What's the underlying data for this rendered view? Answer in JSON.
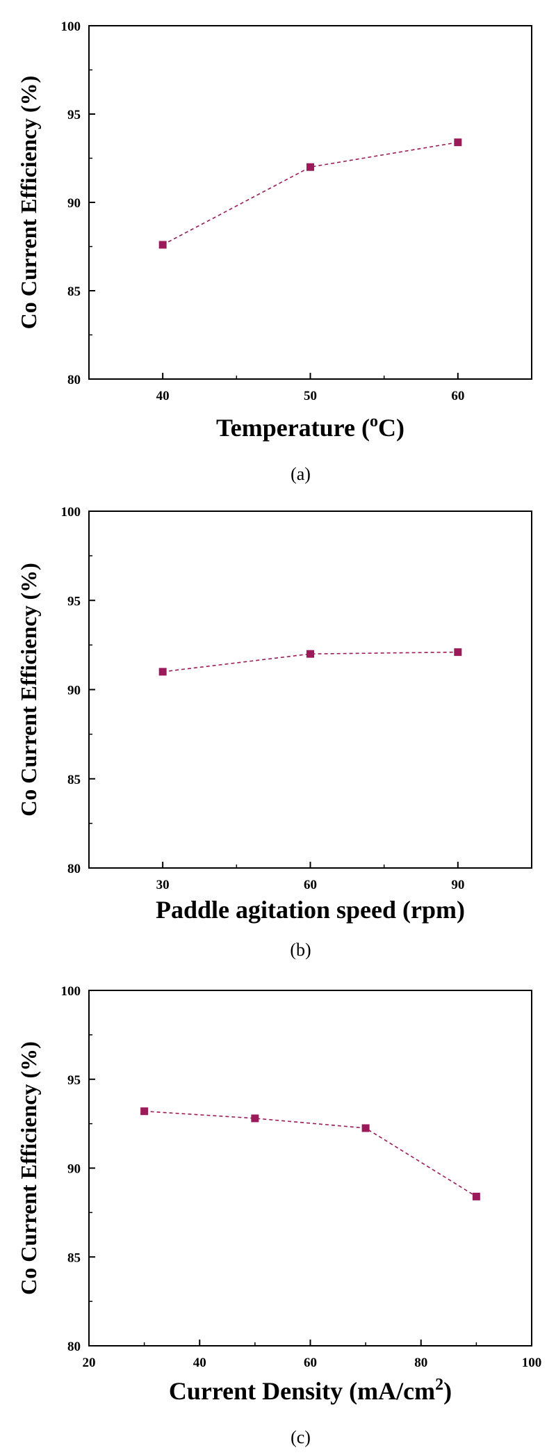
{
  "colors": {
    "series": "#9b1b5a",
    "axes": "#000000"
  },
  "chart_data": [
    {
      "type": "line",
      "line_style": "dashed",
      "marker": "square",
      "caption": "(a)",
      "xlabel": "Temperature (",
      "xlabel_superscript": "o",
      "xlabel_suffix": "C)",
      "ylabel": "Co Current Efficiency (%)",
      "xlim": [
        35,
        65
      ],
      "ylim": [
        80,
        100
      ],
      "x_ticks": [
        40,
        50,
        60
      ],
      "y_ticks": [
        80,
        85,
        90,
        95,
        100
      ],
      "series": [
        {
          "x": [
            40,
            50,
            60
          ],
          "y": [
            87.6,
            92.0,
            93.4
          ]
        }
      ]
    },
    {
      "type": "line",
      "line_style": "dashed",
      "marker": "square",
      "caption": "(b)",
      "xlabel": "Paddle agitation speed (rpm)",
      "ylabel": "Co Current Efficiency (%)",
      "xlim": [
        15,
        105
      ],
      "ylim": [
        80,
        100
      ],
      "x_ticks": [
        30,
        60,
        90
      ],
      "y_ticks": [
        80,
        85,
        90,
        95,
        100
      ],
      "series": [
        {
          "x": [
            30,
            60,
            90
          ],
          "y": [
            91.0,
            92.0,
            92.1
          ]
        }
      ]
    },
    {
      "type": "line",
      "line_style": "dashed",
      "marker": "square",
      "caption": "(c)",
      "xlabel": "Current Density (mA/cm",
      "xlabel_superscript": "2",
      "xlabel_suffix": ")",
      "ylabel": "Co Current Efficiency (%)",
      "xlim": [
        20,
        100
      ],
      "ylim": [
        80,
        100
      ],
      "x_ticks": [
        20,
        40,
        60,
        80,
        100
      ],
      "y_ticks": [
        80,
        85,
        90,
        95,
        100
      ],
      "series": [
        {
          "x": [
            30,
            50,
            70,
            90
          ],
          "y": [
            93.2,
            92.8,
            92.25,
            88.4
          ]
        }
      ]
    }
  ]
}
